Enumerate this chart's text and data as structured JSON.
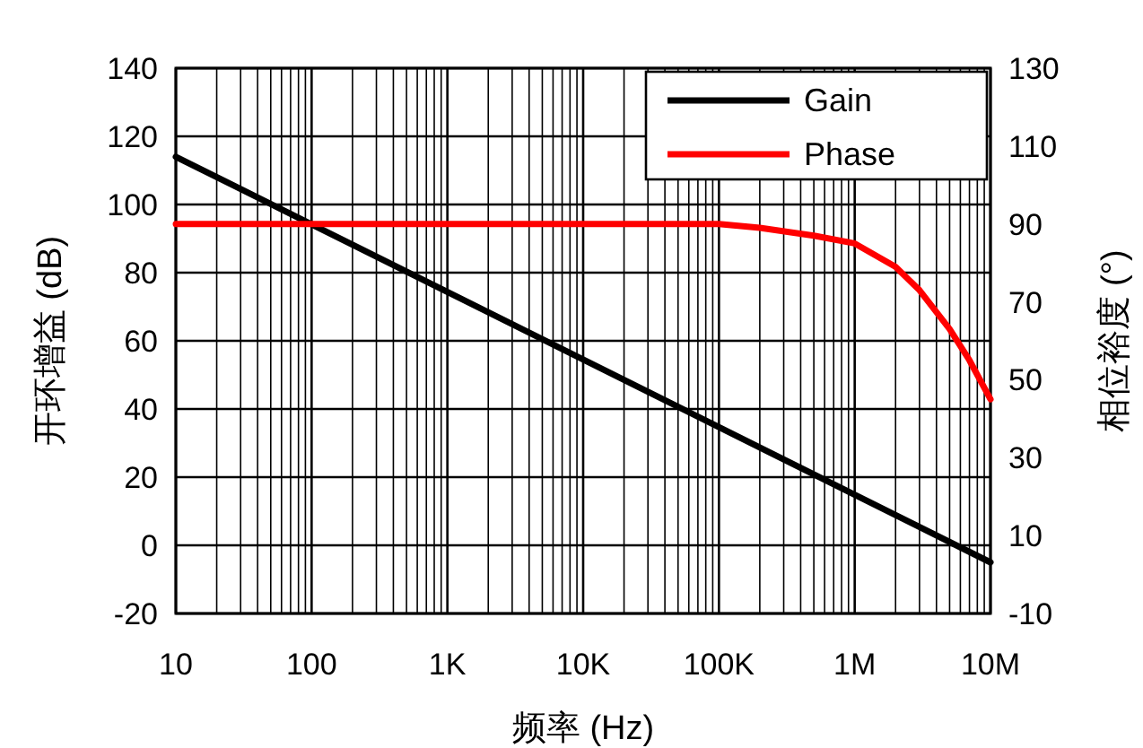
{
  "chart_data": {
    "type": "line",
    "xlabel": "频率 (Hz)",
    "ylabel": "开环增益 (dB)",
    "y2label": "相位裕度 (°)",
    "log": "x",
    "grid": true,
    "legend": "top right",
    "xlim": [
      10,
      10000000
    ],
    "xticks": [
      {
        "value": 10,
        "label": "10"
      },
      {
        "value": 100,
        "label": "100"
      },
      {
        "value": 1000,
        "label": "1K"
      },
      {
        "value": 10000,
        "label": "10K"
      },
      {
        "value": 100000,
        "label": "100K"
      },
      {
        "value": 1000000,
        "label": "1M"
      },
      {
        "value": 10000000,
        "label": "10M"
      }
    ],
    "ylim": [
      -20,
      140
    ],
    "yticks": [
      -20,
      0,
      20,
      40,
      60,
      80,
      100,
      120,
      140
    ],
    "y2lim": [
      -10,
      130
    ],
    "y2ticks": [
      -10,
      10,
      30,
      50,
      70,
      90,
      110,
      130
    ],
    "series": [
      {
        "name": "Gain",
        "color": "#000000",
        "x": [
          10,
          10000000
        ],
        "values": [
          114,
          -5
        ]
      },
      {
        "name": "Phase",
        "color": "#ff0000",
        "axis": "y2",
        "x": [
          10,
          100,
          1000,
          10000,
          100000,
          200000,
          500000,
          1000000,
          2000000,
          3000000,
          5000000,
          7000000,
          10000000
        ],
        "values": [
          90,
          90,
          90,
          90,
          90,
          89,
          87,
          85,
          79,
          73,
          63,
          55,
          45
        ]
      }
    ]
  }
}
